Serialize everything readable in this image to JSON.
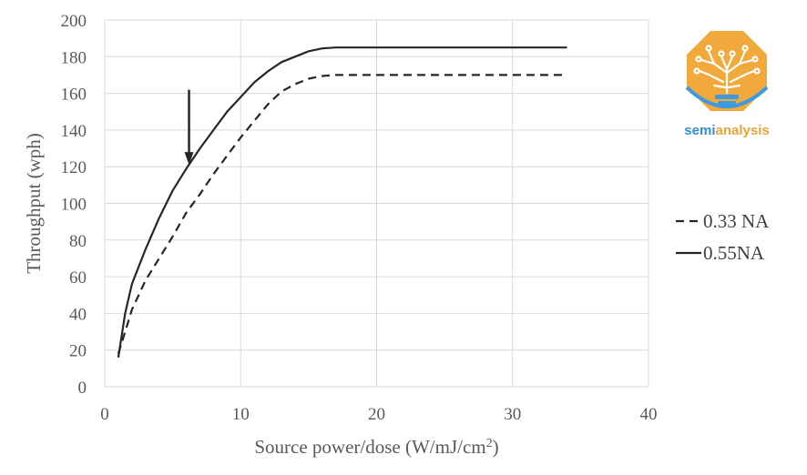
{
  "chart_data": {
    "type": "line",
    "xlabel": "Source power/dose (W/mJ/cm",
    "xlabel_sup": "2",
    "xlabel_tail": ")",
    "ylabel": "Throughput (wph)",
    "xlim": [
      0,
      40
    ],
    "ylim": [
      0,
      200
    ],
    "x_ticks": [
      0,
      10,
      20,
      30,
      40
    ],
    "y_ticks": [
      0,
      20,
      40,
      60,
      80,
      100,
      120,
      140,
      160,
      180,
      200
    ],
    "grid": true,
    "legend_position": "right",
    "series": [
      {
        "name": "0.33 NA",
        "style": "dashed",
        "color": "#262626",
        "x": [
          1,
          1.5,
          2,
          3,
          4,
          5,
          6,
          7,
          8,
          9,
          10,
          11,
          12,
          13,
          14,
          15,
          16,
          17,
          18,
          20,
          25,
          30,
          34
        ],
        "y": [
          18,
          30,
          42,
          58,
          70,
          82,
          95,
          105,
          116,
          126,
          136,
          145,
          154,
          161,
          165,
          168,
          169.5,
          170,
          170,
          170,
          170,
          170,
          170
        ]
      },
      {
        "name": "0.55NA",
        "style": "solid",
        "color": "#262626",
        "x": [
          1,
          1.5,
          2,
          3,
          4,
          5,
          6,
          7,
          8,
          9,
          10,
          11,
          12,
          13,
          14,
          15,
          16,
          17,
          18,
          20,
          25,
          30,
          34
        ],
        "y": [
          16,
          40,
          56,
          75,
          92,
          107,
          119,
          130,
          140,
          150,
          158,
          166,
          172,
          177,
          180,
          183,
          184.5,
          185,
          185,
          185,
          185,
          185,
          185
        ]
      }
    ],
    "annotations": [
      {
        "type": "arrow",
        "x": 6.2,
        "y_from": 162,
        "y_to": 121
      }
    ]
  },
  "logo": {
    "name": "semianalysis-logo",
    "text_semi": "semi",
    "text_analysis": "analysis",
    "colors": {
      "badge": "#F2A93B",
      "text_semi": "#2C8FD6",
      "text_analysis": "#E9A23B",
      "bulb": "#3C9BE0",
      "tree": "#ffffff"
    }
  }
}
